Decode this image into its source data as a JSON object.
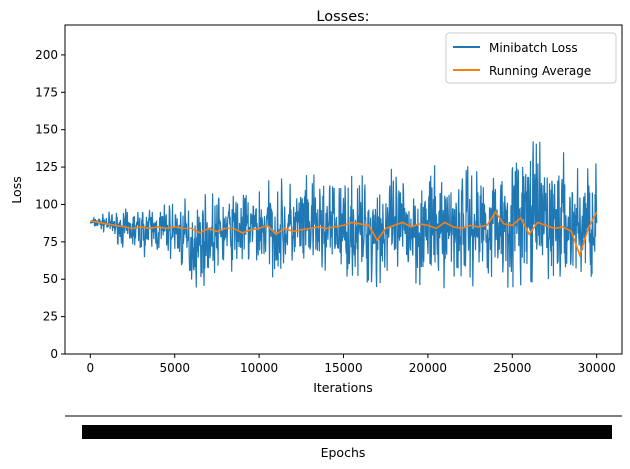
{
  "chart_data": {
    "type": "line",
    "title": "Losses:",
    "xlabel": "Iterations",
    "ylabel": "Loss",
    "secondary_xlabel": "Epochs",
    "xlim": [
      -1500,
      31500
    ],
    "ylim": [
      0,
      220
    ],
    "xticks": [
      0,
      5000,
      10000,
      15000,
      20000,
      25000,
      30000
    ],
    "yticks": [
      0,
      25,
      50,
      75,
      100,
      125,
      150,
      175,
      200
    ],
    "grid": false,
    "legend": "top-right",
    "series": [
      {
        "name": "Minibatch Loss",
        "color": "#1f77b4",
        "x_range": [
          0,
          30000
        ],
        "envelope": [
          {
            "x": 0,
            "low": 85,
            "high": 91
          },
          {
            "x": 1000,
            "low": 80,
            "high": 95
          },
          {
            "x": 2000,
            "low": 70,
            "high": 97
          },
          {
            "x": 3000,
            "low": 65,
            "high": 100
          },
          {
            "x": 5000,
            "low": 62,
            "high": 104
          },
          {
            "x": 6000,
            "low": 40,
            "high": 106
          },
          {
            "x": 8000,
            "low": 55,
            "high": 110
          },
          {
            "x": 10000,
            "low": 52,
            "high": 116
          },
          {
            "x": 12000,
            "low": 50,
            "high": 118
          },
          {
            "x": 14000,
            "low": 48,
            "high": 122
          },
          {
            "x": 16000,
            "low": 45,
            "high": 120
          },
          {
            "x": 17000,
            "low": 38,
            "high": 128
          },
          {
            "x": 18000,
            "low": 45,
            "high": 123
          },
          {
            "x": 20000,
            "low": 42,
            "high": 125
          },
          {
            "x": 22000,
            "low": 43,
            "high": 131
          },
          {
            "x": 24000,
            "low": 45,
            "high": 130
          },
          {
            "x": 26000,
            "low": 40,
            "high": 145
          },
          {
            "x": 28000,
            "low": 40,
            "high": 135
          },
          {
            "x": 29000,
            "low": 38,
            "high": 133
          },
          {
            "x": 30000,
            "low": 50,
            "high": 133
          }
        ]
      },
      {
        "name": "Running Average",
        "color": "#ff7f0e",
        "x": [
          0,
          500,
          1000,
          1500,
          2000,
          2500,
          3000,
          3500,
          4000,
          4500,
          5000,
          5500,
          6000,
          6500,
          7000,
          7500,
          8000,
          8500,
          9000,
          9500,
          10000,
          10500,
          11000,
          11500,
          12000,
          12500,
          13000,
          13500,
          14000,
          14500,
          15000,
          15500,
          16000,
          16500,
          17000,
          17500,
          18000,
          18500,
          19000,
          19500,
          20000,
          20500,
          21000,
          21500,
          22000,
          22500,
          23000,
          23500,
          24000,
          24500,
          25000,
          25500,
          26000,
          26500,
          27000,
          27500,
          28000,
          28500,
          29000,
          29500,
          30000
        ],
        "values": [
          89,
          88,
          87,
          86,
          85,
          84,
          85,
          84,
          85,
          84,
          85,
          84,
          84,
          81,
          84,
          82,
          84,
          84,
          81,
          83,
          84,
          86,
          80,
          84,
          82,
          83,
          84,
          85,
          84,
          85,
          86,
          88,
          87,
          86,
          76,
          84,
          86,
          88,
          85,
          87,
          86,
          84,
          88,
          85,
          84,
          86,
          85,
          86,
          95,
          87,
          86,
          91,
          80,
          88,
          86,
          84,
          85,
          82,
          66,
          84,
          95
        ]
      }
    ]
  }
}
